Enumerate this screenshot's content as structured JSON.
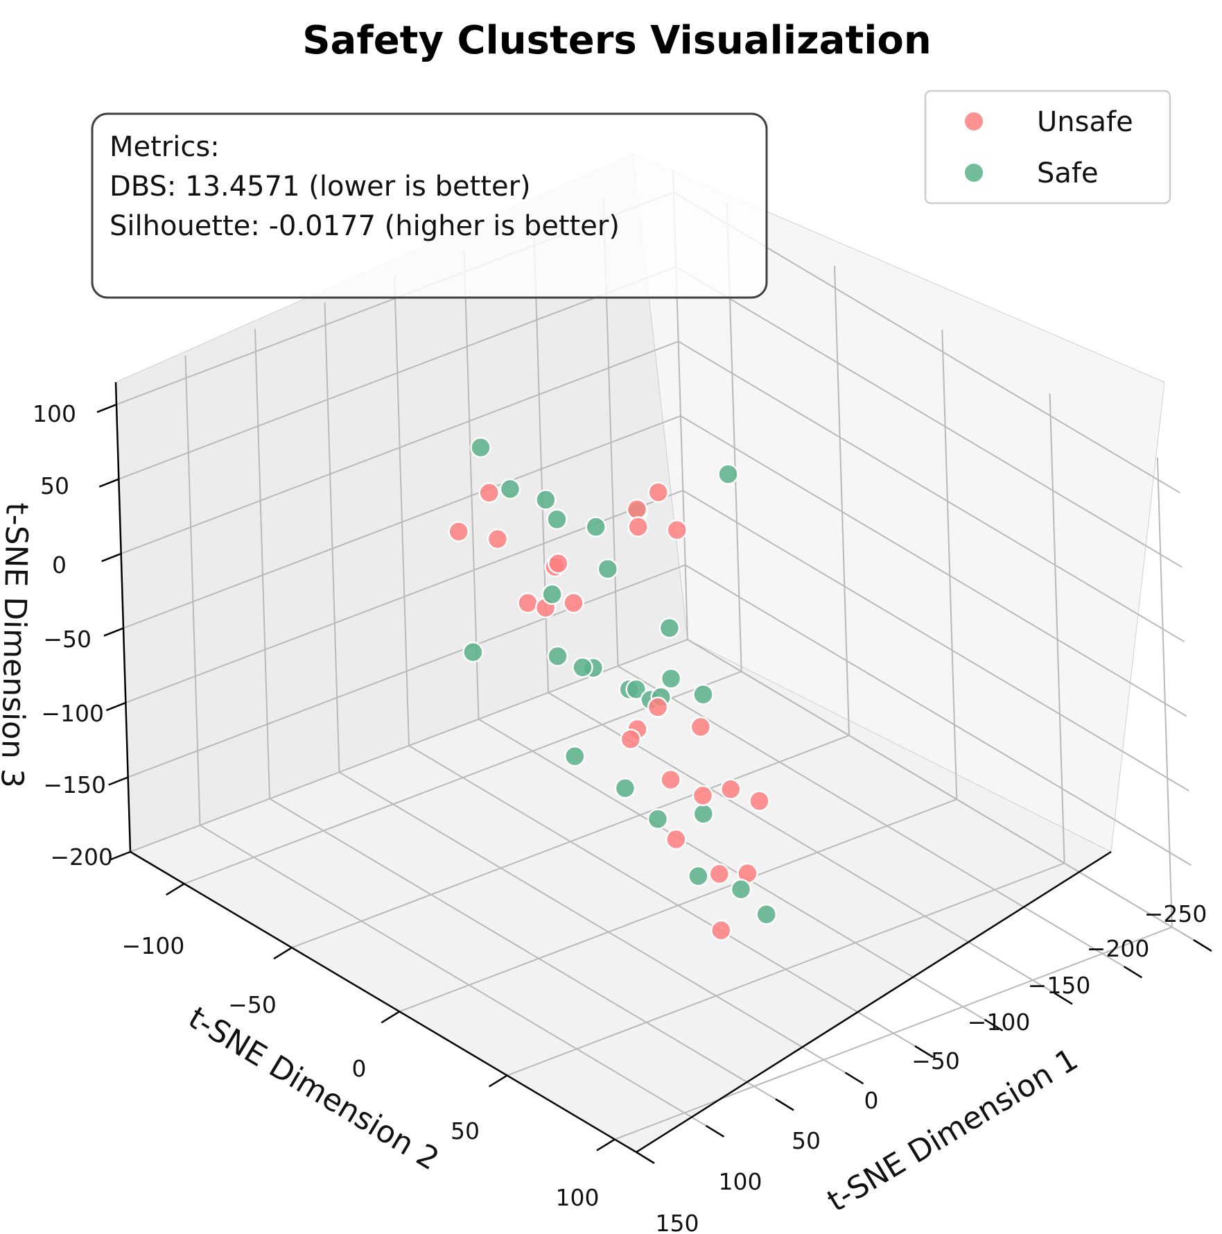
{
  "chart_data": {
    "type": "scatter",
    "projection": "3d",
    "title": "Safety Clusters Visualization",
    "xlabel": "t-SNE Dimension 1",
    "ylabel": "t-SNE Dimension 2",
    "zlabel": "t-SNE Dimension 3",
    "x_ticks": [
      "−250",
      "−200",
      "−150",
      "−100",
      "−50",
      "0",
      "50",
      "100",
      "150"
    ],
    "y_ticks": [
      "−100",
      "−50",
      "0",
      "50",
      "100"
    ],
    "z_ticks": [
      "100",
      "50",
      "0",
      "−50",
      "−100",
      "−150",
      "−200"
    ],
    "xlim": [
      -250,
      150
    ],
    "ylim": [
      -125,
      110
    ],
    "zlim": [
      -200,
      115
    ],
    "grid": true,
    "legend_position": "top-right",
    "metrics": {
      "header": "Metrics:",
      "dbs": "DBS: 13.4571 (lower is better)",
      "silhouette": "Silhouette: -0.0177 (higher is better)"
    },
    "series": [
      {
        "name": "Unsafe",
        "color": "#ff7f7f",
        "points": [
          [
            -15,
            10,
            75
          ],
          [
            -22,
            5,
            80
          ],
          [
            -35,
            15,
            70
          ],
          [
            -60,
            -10,
            65
          ],
          [
            20,
            -5,
            50
          ],
          [
            -45,
            -80,
            10
          ],
          [
            -30,
            -85,
            -15
          ],
          [
            -40,
            -60,
            -45
          ],
          [
            15,
            -15,
            10
          ],
          [
            10,
            -5,
            20
          ],
          [
            50,
            60,
            20
          ],
          [
            35,
            70,
            10
          ],
          [
            30,
            80,
            -25
          ],
          [
            10,
            20,
            -50
          ],
          [
            5,
            20,
            -45
          ],
          [
            -10,
            25,
            -80
          ],
          [
            20,
            60,
            -50
          ],
          [
            -5,
            50,
            -120
          ],
          [
            10,
            40,
            -100
          ],
          [
            20,
            80,
            -85
          ],
          [
            25,
            70,
            -130
          ],
          [
            -30,
            -40,
            0
          ],
          [
            -20,
            -60,
            5
          ],
          [
            10,
            80,
            -40
          ]
        ]
      },
      {
        "name": "Safe",
        "color": "#5bb08a",
        "points": [
          [
            -50,
            30,
            115
          ],
          [
            -10,
            -60,
            70
          ],
          [
            -30,
            -60,
            35
          ],
          [
            -55,
            -55,
            10
          ],
          [
            -75,
            -30,
            30
          ],
          [
            -45,
            -30,
            30
          ],
          [
            -70,
            -70,
            5
          ],
          [
            -30,
            -15,
            20
          ],
          [
            40,
            5,
            45
          ],
          [
            10,
            55,
            10
          ],
          [
            25,
            45,
            5
          ],
          [
            -35,
            10,
            0
          ],
          [
            -20,
            20,
            -20
          ],
          [
            5,
            -5,
            -25
          ],
          [
            10,
            30,
            -15
          ],
          [
            -10,
            -10,
            -35
          ],
          [
            -30,
            -40,
            -60
          ],
          [
            20,
            0,
            -75
          ],
          [
            0,
            10,
            -95
          ],
          [
            -10,
            40,
            -90
          ],
          [
            30,
            45,
            -75
          ],
          [
            40,
            90,
            -80
          ],
          [
            -80,
            -40,
            -100
          ],
          [
            15,
            85,
            -110
          ],
          [
            -40,
            -10,
            -60
          ],
          [
            -5,
            40,
            -130
          ],
          [
            -120,
            -140,
            -175
          ]
        ]
      }
    ]
  }
}
